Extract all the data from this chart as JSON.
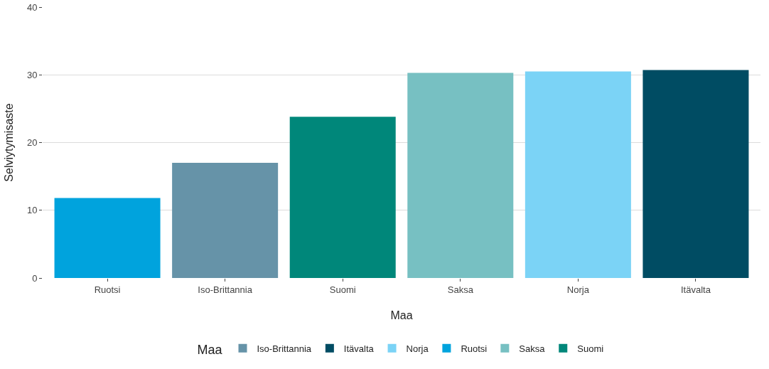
{
  "chart_data": {
    "type": "bar",
    "xlabel": "Maa",
    "ylabel": "Selviytymisaste",
    "legend_title": "Maa",
    "categories": [
      "Ruotsi",
      "Iso-Brittannia",
      "Suomi",
      "Saksa",
      "Norja",
      "Itävalta"
    ],
    "series": [
      {
        "name": "Iso-Brittannia",
        "color": "#6693a8",
        "values": [
          null,
          17.0,
          null,
          null,
          null,
          null
        ]
      },
      {
        "name": "Itävalta",
        "color": "#004c63",
        "values": [
          null,
          null,
          null,
          null,
          null,
          30.7
        ]
      },
      {
        "name": "Norja",
        "color": "#7bd3f6",
        "values": [
          null,
          null,
          null,
          null,
          30.5,
          null
        ]
      },
      {
        "name": "Ruotsi",
        "color": "#00a3dd",
        "values": [
          11.8,
          null,
          null,
          null,
          null,
          null
        ]
      },
      {
        "name": "Saksa",
        "color": "#77c0c2",
        "values": [
          null,
          null,
          null,
          30.3,
          null,
          null
        ]
      },
      {
        "name": "Suomi",
        "color": "#00877a",
        "values": [
          null,
          null,
          23.8,
          null,
          null,
          null
        ]
      }
    ],
    "ylim": [
      0,
      40
    ],
    "yticks": [
      0,
      10,
      20,
      30,
      40
    ],
    "grid": "y",
    "legend": "bottom"
  }
}
